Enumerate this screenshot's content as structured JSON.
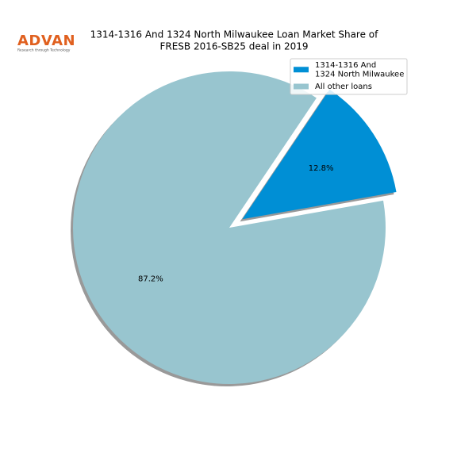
{
  "chart_data": {
    "type": "pie",
    "title": [
      "1314-1316 And 1324 North Milwaukee Loan Market Share of",
      "FRESB 2016-SB25 deal in 2019"
    ],
    "categories": [
      "1314-1316 And\n1324 North Milwaukee",
      "All other loans"
    ],
    "values": [
      12.8,
      87.2
    ],
    "value_labels": [
      "12.8%",
      "87.2%"
    ],
    "colors": [
      "#008fd5",
      "#98c5cf"
    ],
    "explode": [
      0.1,
      0
    ],
    "startangle": 10,
    "shadow": true,
    "legend": "upper right"
  },
  "logo": {
    "name": "ADVAN",
    "tagline": "Research through Technology"
  }
}
